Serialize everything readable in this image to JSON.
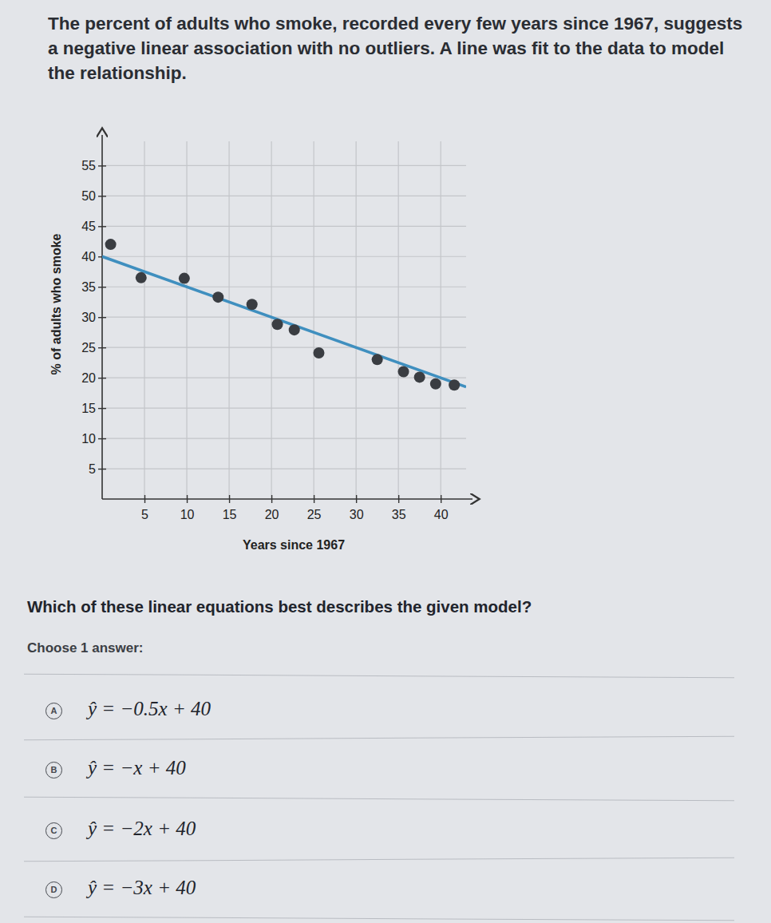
{
  "question": {
    "intro": "The percent of adults who smoke, recorded every few years since 1967, suggests a negative linear association with no outliers. A line was fit to the data to model the relationship.",
    "prompt": "Which of these linear equations best describes the given model?",
    "instruction": "Choose 1 answer:",
    "choices": [
      {
        "letter": "A",
        "text": "ŷ = −0.5x + 40"
      },
      {
        "letter": "B",
        "text": "ŷ = −x + 40"
      },
      {
        "letter": "C",
        "text": "ŷ = −2x + 40"
      },
      {
        "letter": "D",
        "text": "ŷ = −3x + 40"
      }
    ]
  },
  "chart_data": {
    "type": "scatter",
    "x_label": "Years since 1967",
    "y_label": "% of adults who smoke",
    "xlim": [
      0,
      43
    ],
    "ylim": [
      0,
      59
    ],
    "xticks": [
      5,
      10,
      15,
      20,
      25,
      30,
      35,
      40
    ],
    "yticks": [
      5,
      10,
      15,
      20,
      25,
      30,
      35,
      40,
      45,
      50,
      55
    ],
    "grid": true,
    "series": [
      {
        "type": "scatter",
        "marker": "circle",
        "color": "#3a3d42",
        "x": [
          1,
          4.6,
          9.7,
          13.7,
          17.7,
          20.7,
          22.7,
          25.6,
          32.5,
          35.6,
          37.5,
          39.4,
          41.6
        ],
        "values": [
          42,
          36.5,
          36.4,
          33.3,
          32.1,
          28.8,
          27.9,
          24.1,
          23,
          21,
          20.1,
          19,
          18.8
        ]
      },
      {
        "type": "line",
        "line_style": "solid",
        "color": "#3f8fbf",
        "x": [
          0,
          43
        ],
        "values": [
          40,
          18.5
        ]
      }
    ]
  }
}
